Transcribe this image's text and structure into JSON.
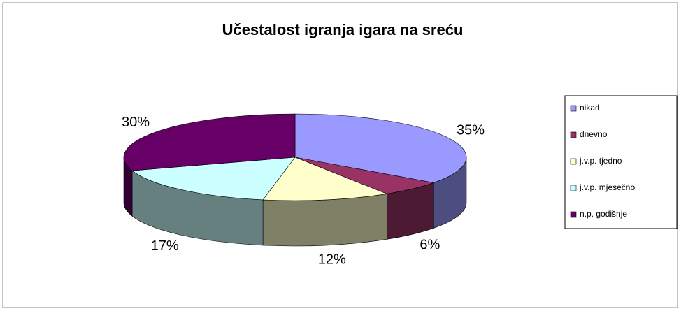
{
  "chart_data": {
    "type": "pie3d",
    "title": "Učestalost igranja igara na sreću",
    "categories": [
      "nikad",
      "dnevno",
      "j.v.p. tjedno",
      "j.v.p. mjesečno",
      "n.p. godišnje"
    ],
    "values": [
      35,
      6,
      12,
      17,
      30
    ],
    "value_labels": [
      "35%",
      "6%",
      "12%",
      "17%",
      "30%"
    ],
    "colors": [
      "#9999ff",
      "#993366",
      "#ffffcc",
      "#ccffff",
      "#660066"
    ],
    "legend": "right"
  }
}
